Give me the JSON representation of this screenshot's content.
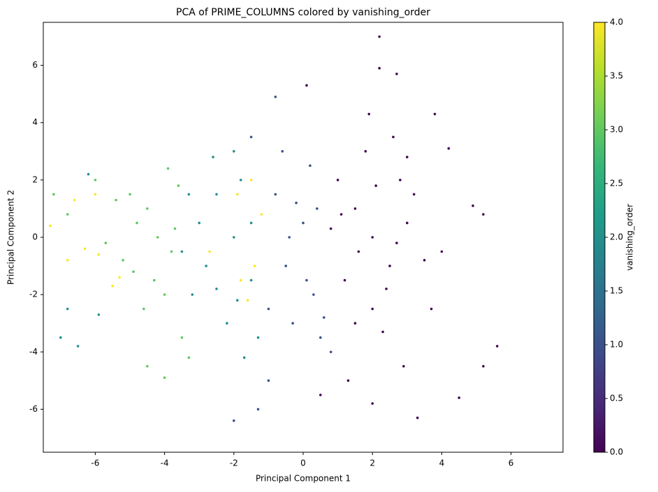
{
  "chart_data": {
    "type": "scatter",
    "title": "PCA of PRIME_COLUMNS colored by vanishing_order",
    "x_label": "Principal Component 1",
    "y_label": "Principal Component 2",
    "colorbar_label": "vanishing_order",
    "colormap": "viridis",
    "xlim": [
      -7.5,
      7.5
    ],
    "ylim": [
      -7.5,
      7.5
    ],
    "xticks": [
      -6,
      -4,
      -2,
      0,
      2,
      4,
      6
    ],
    "yticks": [
      -6,
      -4,
      -2,
      0,
      2,
      4,
      6
    ],
    "clim": [
      0,
      4
    ],
    "cticks": [
      {
        "value": 0,
        "label": "0.0"
      },
      {
        "value": 0.5,
        "label": "0.5"
      },
      {
        "value": 1,
        "label": "1.0"
      },
      {
        "value": 1.5,
        "label": "1.5"
      },
      {
        "value": 2,
        "label": "2.0"
      },
      {
        "value": 2.5,
        "label": "2.5"
      },
      {
        "value": 3,
        "label": "3.0"
      },
      {
        "value": 3.5,
        "label": "3.5"
      },
      {
        "value": 4,
        "label": "4.0"
      }
    ],
    "x": [
      2,
      1.5,
      2.5,
      1,
      3,
      2,
      1.2,
      2.8,
      3.5,
      1.8,
      2.3,
      0.8,
      1.5,
      3.2,
      4,
      2.6,
      1.9,
      2.2,
      2.2,
      2.7,
      4.5,
      5.2,
      5.6,
      4.9,
      5.2,
      3.7,
      2.9,
      2,
      3.3,
      1.3,
      0.5,
      4.2,
      3.8,
      0.1,
      2.4,
      1.1,
      2.7,
      3,
      1.6,
      2.1,
      0,
      -0.5,
      0.3,
      0.5,
      -0.8,
      0.2,
      -0.3,
      0.8,
      0.6,
      -0.6,
      -1,
      -1.3,
      -0.8,
      -2,
      -0.4,
      0.1,
      -0.2,
      -1,
      0.4,
      -1.5,
      -2,
      -2.5,
      -1.5,
      -2.8,
      -1.8,
      -3,
      -2.2,
      -1.3,
      -2.6,
      -3.2,
      -1.7,
      -3.5,
      -2,
      -1.5,
      -3.3,
      -5.9,
      -6.5,
      -6.2,
      -7,
      -6.8,
      -2.5,
      -1.9,
      -4.2,
      -4.5,
      -3.8,
      -4,
      -4.8,
      -5.2,
      -3.6,
      -4.3,
      -3.9,
      -4.6,
      -5,
      -3.5,
      -4,
      -4.5,
      -5.4,
      -6,
      -5.7,
      -7.2,
      -6.8,
      -3.7,
      -4.9,
      -3.3,
      -1.5,
      -1.8,
      -1.2,
      -1.6,
      -1.9,
      -1.4,
      -2.7,
      -6.8,
      -6.6,
      -6,
      -5.5,
      -5.3,
      -7.3,
      -5.9,
      -6.3
    ],
    "values": [
      0,
      1,
      -1,
      2,
      0.5,
      -2.5,
      -1.5,
      2,
      -0.8,
      3,
      -3.3,
      0.3,
      -3,
      1.5,
      -0.5,
      3.5,
      4.3,
      7,
      5.9,
      5.7,
      -5.6,
      -4.5,
      -3.8,
      1.1,
      0.8,
      -2.5,
      -4.5,
      -5.8,
      -6.3,
      -5,
      -5.5,
      3.1,
      4.3,
      5.3,
      -1.8,
      0.8,
      -0.2,
      2.8,
      -0.5,
      1.8,
      0.5,
      -1,
      -2,
      -3.5,
      1.5,
      2.5,
      -3,
      -4,
      -2.8,
      3,
      -5,
      -6,
      4.9,
      -6.4,
      0,
      -1.5,
      1.2,
      -2.5,
      1,
      3.5,
      0,
      1.5,
      -1.5,
      -1,
      2,
      0.5,
      -3,
      -3.5,
      2.8,
      -2,
      -4.2,
      -0.5,
      3,
      0.5,
      1.5,
      -2.7,
      -3.8,
      2.2,
      -3.5,
      -2.5,
      -1.8,
      -2.2,
      0,
      1,
      -0.5,
      -2,
      0.5,
      -0.8,
      1.8,
      -1.5,
      2.4,
      -2.5,
      1.5,
      -3.5,
      -4.9,
      -4.5,
      1.3,
      2,
      -0.2,
      1.5,
      0.8,
      0.3,
      -1.2,
      -4.2,
      2,
      -1.5,
      0.8,
      -2.2,
      1.5,
      -1,
      -0.5,
      -0.8,
      1.3,
      1.5,
      -1.7,
      -1.4,
      0.4,
      -0.6,
      -0.4
    ],
    "c": [
      0,
      0,
      0,
      0,
      0,
      0,
      0,
      0,
      0,
      0,
      0,
      0,
      0,
      0,
      0,
      0,
      0,
      0,
      0,
      0,
      0,
      0,
      0,
      0,
      0,
      0,
      0,
      0,
      0,
      0,
      0,
      0,
      0,
      0,
      0,
      0,
      0,
      0,
      0,
      0,
      1,
      1,
      1,
      1,
      1,
      1,
      1,
      1,
      1,
      1,
      1,
      1,
      1,
      1,
      1,
      1,
      1,
      1,
      1,
      1,
      2,
      2,
      2,
      2,
      2,
      2,
      2,
      2,
      2,
      2,
      2,
      2,
      2,
      2,
      2,
      2,
      2,
      2,
      2,
      2,
      2,
      2,
      3,
      3,
      3,
      3,
      3,
      3,
      3,
      3,
      3,
      3,
      3,
      3,
      3,
      3,
      3,
      3,
      3,
      3,
      3,
      3,
      3,
      3,
      4,
      4,
      4,
      4,
      4,
      4,
      4,
      4,
      4,
      4,
      4,
      4,
      4,
      4,
      4
    ]
  }
}
